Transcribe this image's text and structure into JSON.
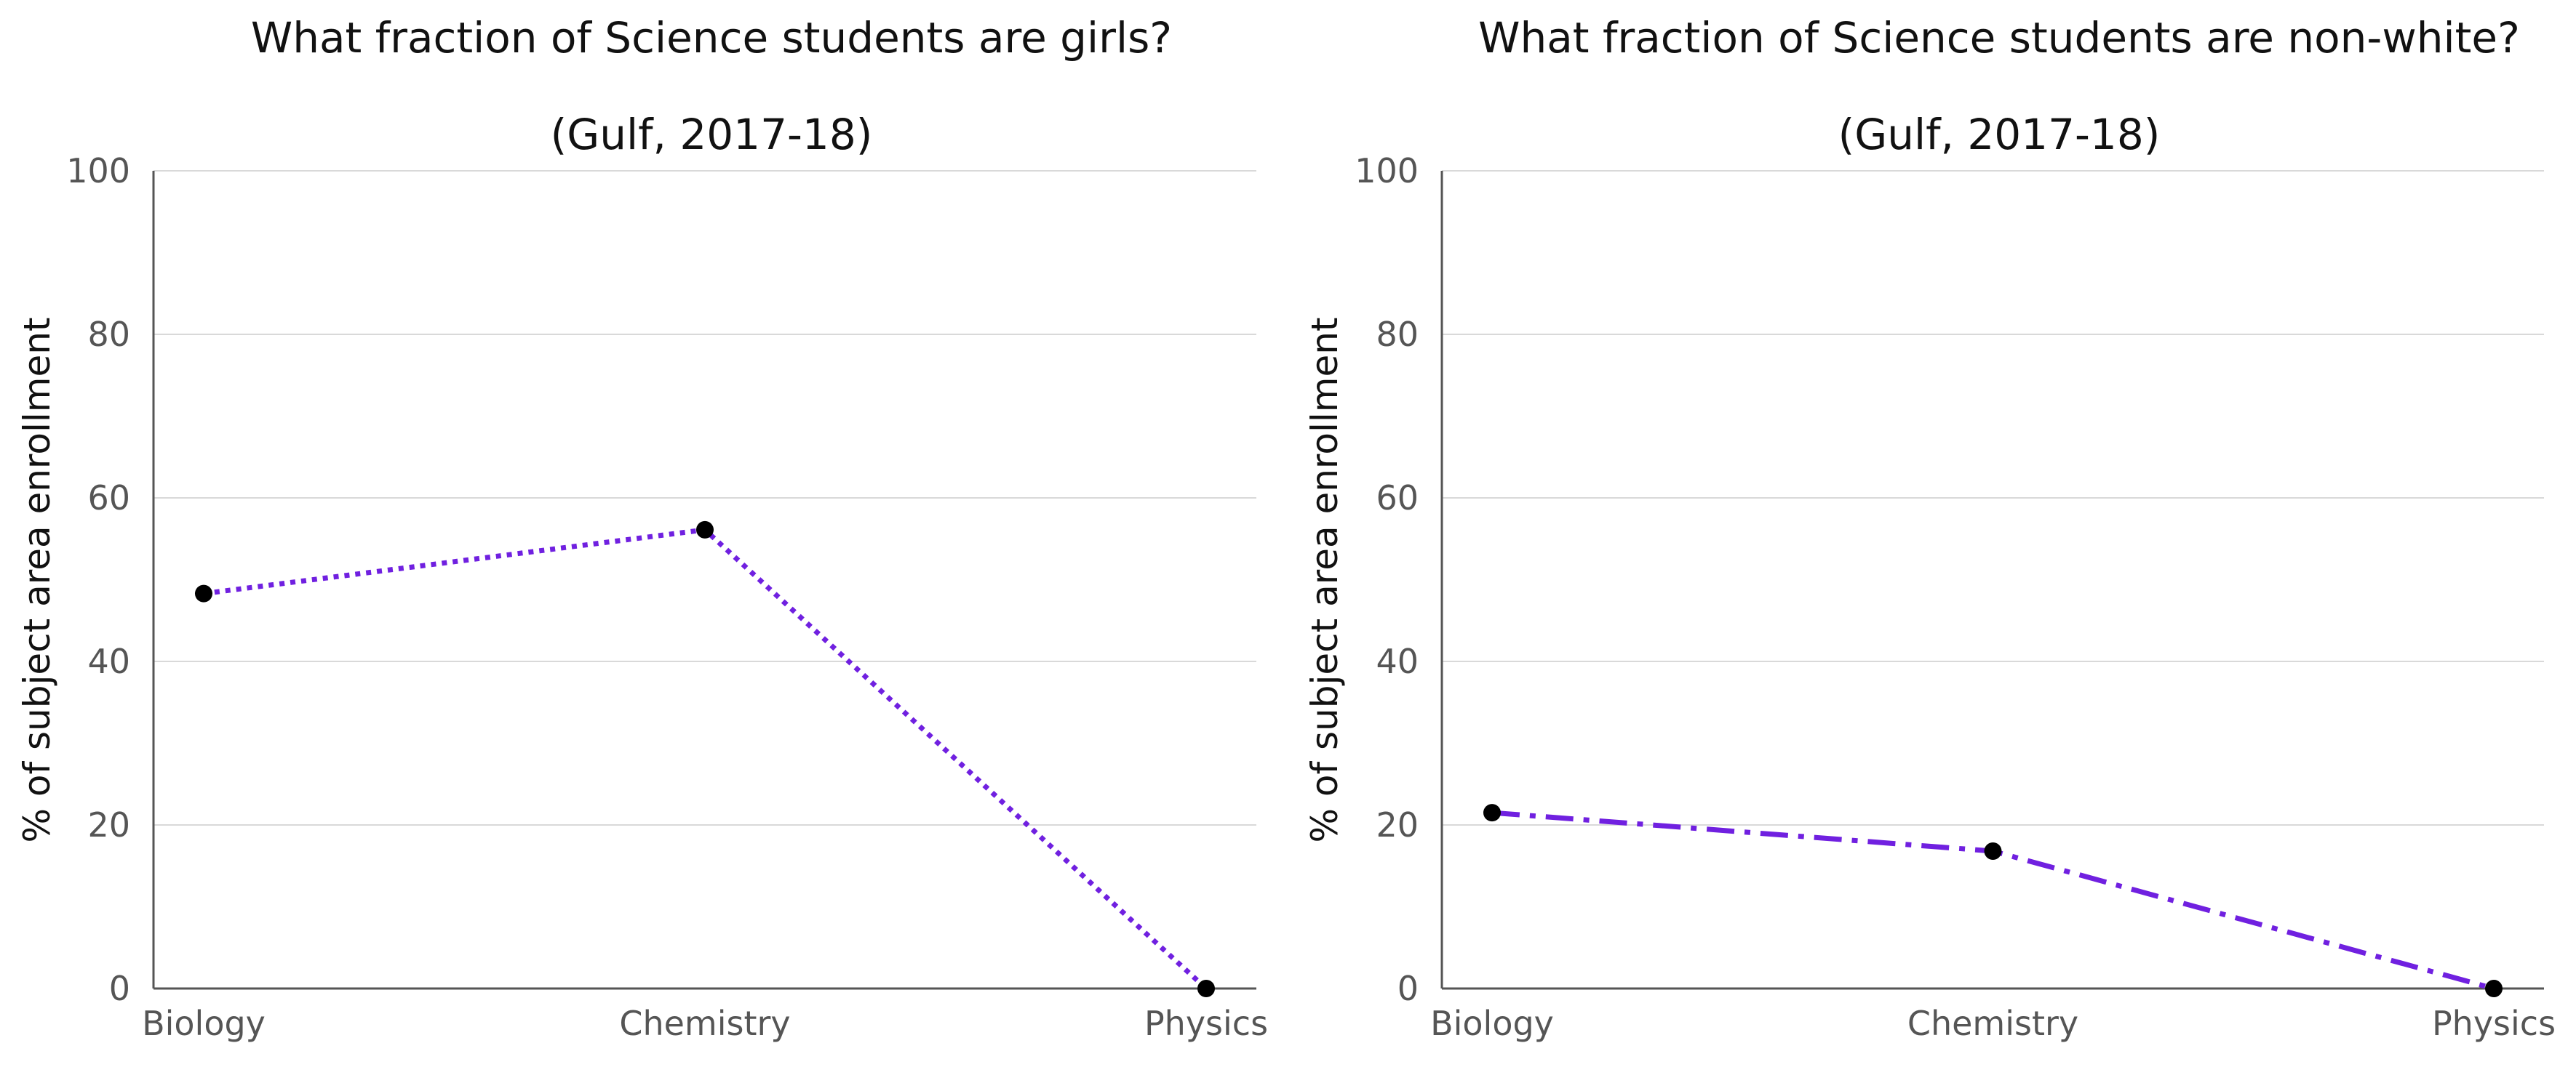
{
  "chart_data": [
    {
      "type": "line",
      "title": "What fraction of Science students are girls?",
      "subtitle": "(Gulf, 2017-18)",
      "ylabel": "% of subject area enrollment",
      "xlabel": "",
      "categories": [
        "Biology",
        "Chemistry",
        "Physics"
      ],
      "series": [
        {
          "values": [
            48.3,
            56.1,
            0.0
          ],
          "color": "#7020e0",
          "line_style": "dotted"
        }
      ],
      "ylim": [
        0,
        100
      ],
      "yticks": [
        0,
        20,
        40,
        60,
        80,
        100
      ],
      "grid": true,
      "marker_color": "#000000"
    },
    {
      "type": "line",
      "title": "What fraction of Science students are non-white?",
      "subtitle": "(Gulf, 2017-18)",
      "ylabel": "% of subject area enrollment",
      "xlabel": "",
      "categories": [
        "Biology",
        "Chemistry",
        "Physics"
      ],
      "series": [
        {
          "values": [
            21.5,
            16.8,
            0.0
          ],
          "color": "#7020e0",
          "line_style": "dashdot"
        }
      ],
      "ylim": [
        0,
        100
      ],
      "yticks": [
        0,
        20,
        40,
        60,
        80,
        100
      ],
      "grid": true,
      "marker_color": "#000000"
    }
  ]
}
